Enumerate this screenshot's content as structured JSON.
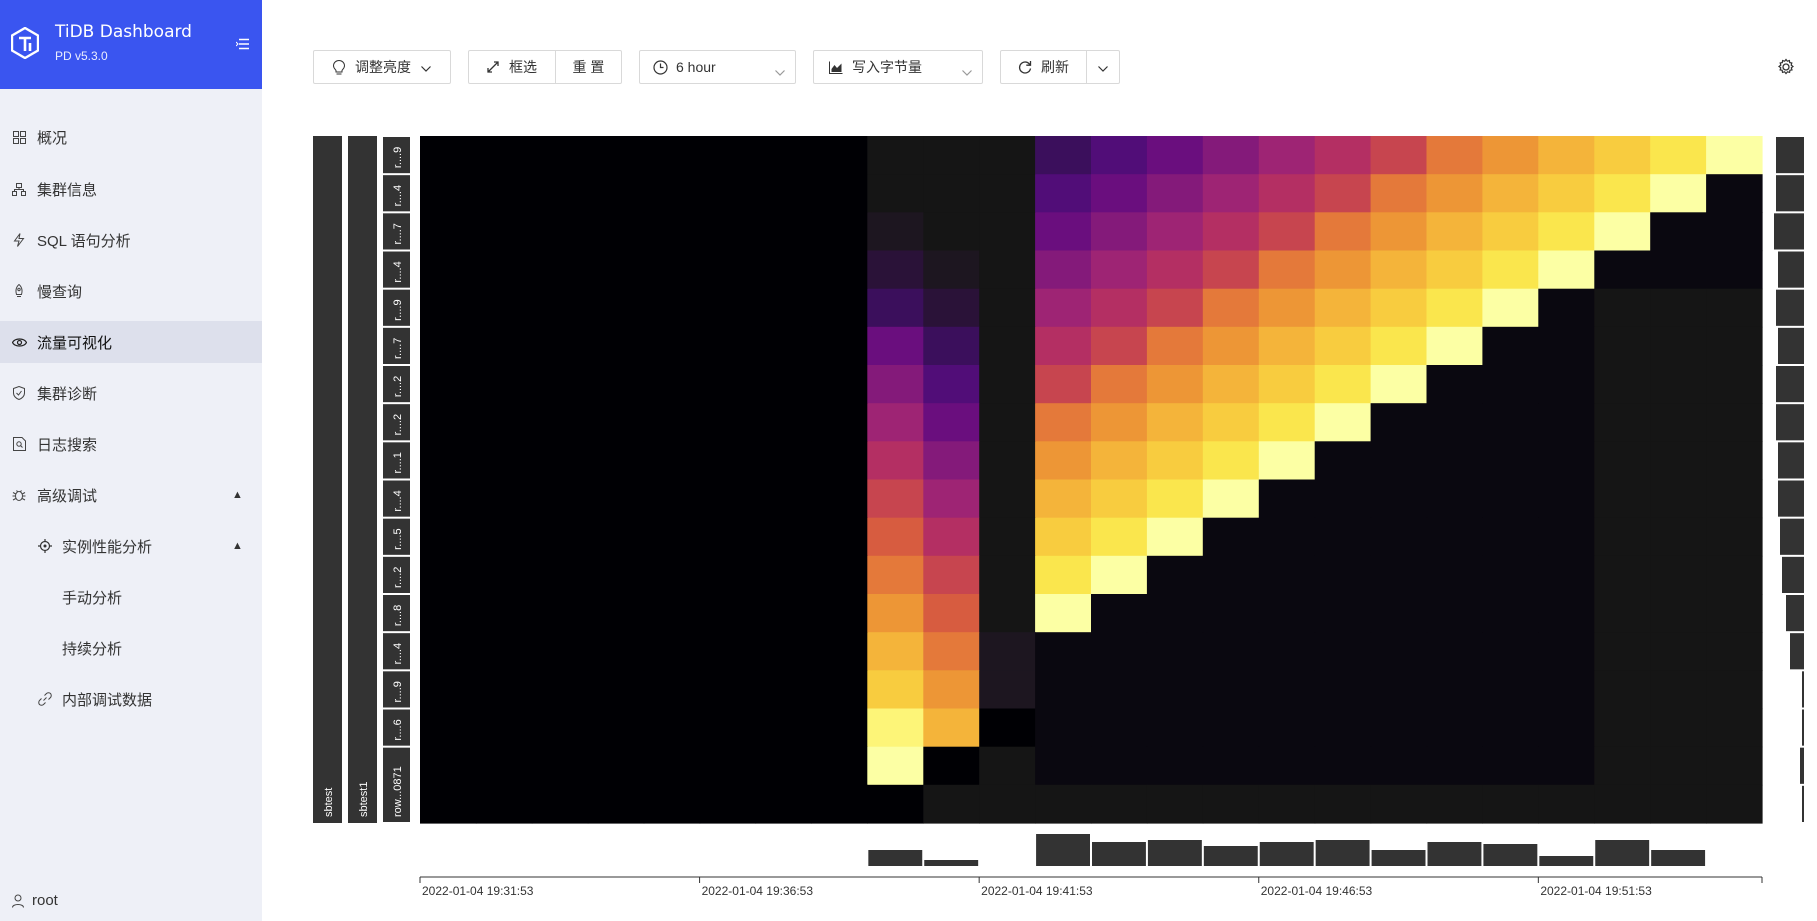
{
  "app": {
    "title": "TiDB Dashboard",
    "version": "PD v5.3.0"
  },
  "sidebar": {
    "items": [
      {
        "label": "概况",
        "icon": "grid-icon"
      },
      {
        "label": "集群信息",
        "icon": "cluster-icon"
      },
      {
        "label": "SQL 语句分析",
        "icon": "lightning-icon"
      },
      {
        "label": "慢查询",
        "icon": "rocket-icon"
      },
      {
        "label": "流量可视化",
        "icon": "eye-icon"
      },
      {
        "label": "集群诊断",
        "icon": "shield-icon"
      },
      {
        "label": "日志搜索",
        "icon": "file-search-icon"
      },
      {
        "label": "高级调试",
        "icon": "bug-icon"
      },
      {
        "label": "实例性能分析",
        "icon": "crosshair-icon"
      },
      {
        "label": "手动分析"
      },
      {
        "label": "持续分析"
      },
      {
        "label": "内部调试数据",
        "icon": "link-icon"
      }
    ],
    "user": "root"
  },
  "toolbar": {
    "brightness": "调整亮度",
    "select": "框选",
    "reset": "重 置",
    "range": "6 hour",
    "metric": "写入字节量",
    "refresh": "刷新"
  },
  "heatmap": {
    "db_labels": [
      "sbtest",
      "sbtest1"
    ],
    "row_labels": [
      "r....9",
      "r....4",
      "r....7",
      "r....4",
      "r....9",
      "r....7",
      "r....2",
      "r....2",
      "r....1",
      "r....4",
      "r....5",
      "r....2",
      "r....8",
      "r....4",
      "r....9",
      "r....6",
      "row...0871"
    ],
    "time_labels": [
      "2022-01-04 19:31:53",
      "2022-01-04 19:36:53",
      "2022-01-04 19:41:53",
      "2022-01-04 19:46:53",
      "2022-01-04 19:51:53"
    ],
    "colors": {
      "accent": "#3a55f0",
      "heat_low": "#000004",
      "heat_mid": "#b42d5c",
      "heat_high": "#fcffa4"
    }
  }
}
